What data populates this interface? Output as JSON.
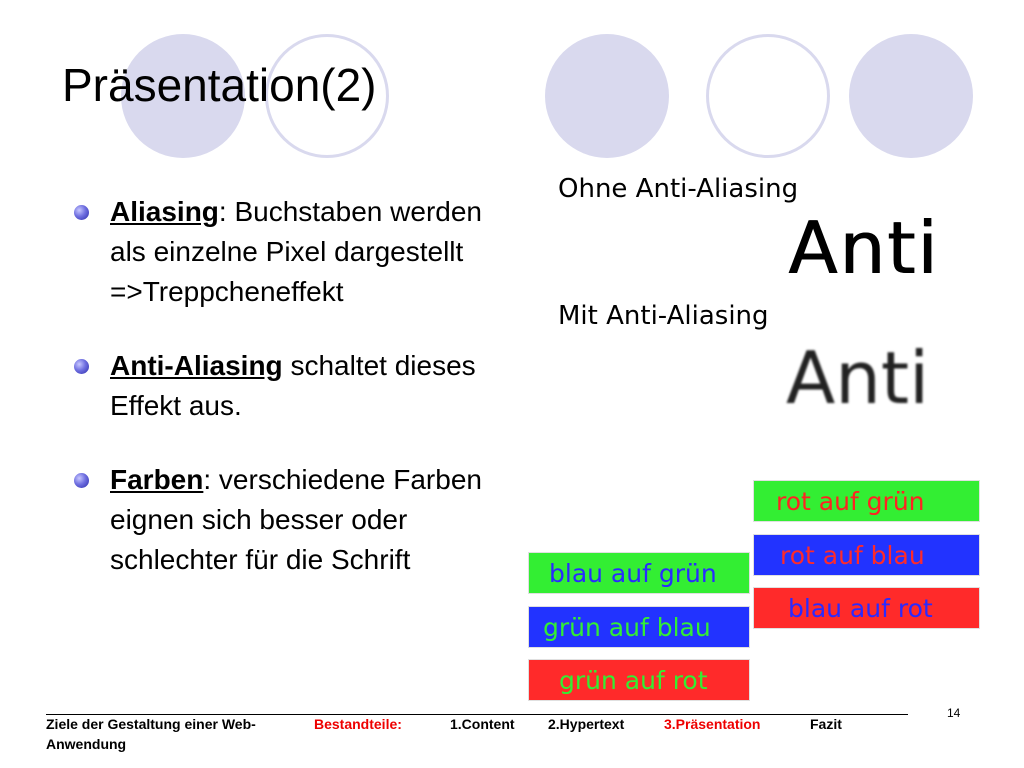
{
  "slide": {
    "title": "Präsentation(2)",
    "bullets": [
      {
        "term": "Aliasing",
        "text": ": Buchstaben werden als einzelne Pixel dargestellt =>Treppcheneffekt"
      },
      {
        "term": "Anti-Aliasing",
        "text": " schaltet dieses Effekt aus."
      },
      {
        "term": "Farben",
        "text": ": verschiedene Farben eignen sich besser oder schlechter für die Schrift"
      }
    ],
    "aa_demo": {
      "caption_without": "Ohne Anti-Aliasing",
      "sample_without": "Anti",
      "caption_with": "Mit Anti-Aliasing",
      "sample_with": "Anti"
    },
    "color_boxes": [
      {
        "text": "rot auf grün",
        "bg": "#33ee33",
        "fg": "#ff2222"
      },
      {
        "text": "rot auf blau",
        "bg": "#2233ff",
        "fg": "#ff2a2a"
      },
      {
        "text": "blau auf rot",
        "bg": "#ff2a2a",
        "fg": "#2a2aff"
      },
      {
        "text": "blau auf grün",
        "bg": "#33ee33",
        "fg": "#2a2aff"
      },
      {
        "text": "grün auf blau",
        "bg": "#2233ff",
        "fg": "#33ee33"
      },
      {
        "text": "grün auf rot",
        "bg": "#ff2a2a",
        "fg": "#33ee33"
      }
    ],
    "decor_colors": {
      "circle": "#d9d9ee",
      "bullet": "#4a4ad0"
    }
  },
  "footer": {
    "course": "Ziele der Gestaltung einer Web-Anwendung",
    "nav": [
      "Bestandteile:",
      "1.Content",
      "2.Hypertext",
      "3.Präsentation",
      "Fazit"
    ],
    "active_color": "#ee0000",
    "page_number": "14"
  }
}
